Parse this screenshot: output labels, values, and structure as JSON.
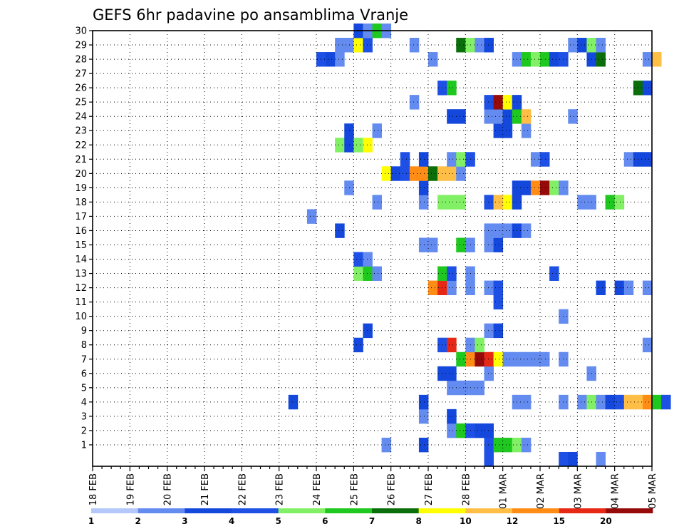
{
  "chart_data": {
    "type": "heatmap",
    "title": "GEFS 6hr padavine po ansamblima Vranje",
    "y_ticks": [
      "1",
      "2",
      "3",
      "4",
      "5",
      "6",
      "7",
      "8",
      "9",
      "10",
      "11",
      "12",
      "13",
      "14",
      "15",
      "16",
      "17",
      "18",
      "19",
      "20",
      "21",
      "22",
      "23",
      "24",
      "25",
      "26",
      "27",
      "28",
      "29",
      "30"
    ],
    "x_ticks": [
      "18 FEB",
      "19 FEB",
      "20 FEB",
      "21 FEB",
      "22 FEB",
      "23 FEB",
      "24 FEB",
      "25 FEB",
      "26 FEB",
      "27 FEB",
      "28 FEB",
      "01 MAR",
      "02 MAR",
      "03 MAR",
      "04 MAR",
      "05 MAR"
    ],
    "x_range_steps_6h": [
      0,
      60
    ],
    "y_range_members": [
      0,
      30
    ],
    "grid": "dotted",
    "colorbar": {
      "labels": [
        "1",
        "2",
        "3",
        "4",
        "5",
        "6",
        "7",
        "8",
        "10",
        "12",
        "15",
        "20"
      ],
      "colors": [
        "#b4c8fa",
        "#648cf0",
        "#1448dc",
        "#1e50e6",
        "#82f064",
        "#1ec81e",
        "#0a6e0a",
        "#ffff00",
        "#ffbe46",
        "#ff8c14",
        "#e62814",
        "#960a0a",
        "#640000"
      ]
    },
    "cells": [
      [
        0,
        42,
        3
      ],
      [
        0,
        50,
        3
      ],
      [
        0,
        51,
        2
      ],
      [
        0,
        54,
        1
      ],
      [
        1,
        31,
        1
      ],
      [
        1,
        35,
        2
      ],
      [
        1,
        42,
        3
      ],
      [
        1,
        43,
        5
      ],
      [
        1,
        44,
        5
      ],
      [
        1,
        45,
        4
      ],
      [
        1,
        46,
        1
      ],
      [
        2,
        38,
        1
      ],
      [
        2,
        39,
        5
      ],
      [
        2,
        40,
        3
      ],
      [
        2,
        41,
        2
      ],
      [
        2,
        42,
        2
      ],
      [
        3,
        35,
        1
      ],
      [
        3,
        38,
        2
      ],
      [
        4,
        21,
        2
      ],
      [
        4,
        35,
        2
      ],
      [
        4,
        45,
        1
      ],
      [
        4,
        46,
        1
      ],
      [
        4,
        50,
        1
      ],
      [
        4,
        52,
        1
      ],
      [
        4,
        53,
        4
      ],
      [
        4,
        54,
        1
      ],
      [
        4,
        55,
        2
      ],
      [
        4,
        56,
        3
      ],
      [
        4,
        57,
        8
      ],
      [
        4,
        58,
        8
      ],
      [
        4,
        59,
        9
      ],
      [
        4,
        60,
        5
      ],
      [
        4,
        61,
        3
      ],
      [
        5,
        38,
        1
      ],
      [
        5,
        39,
        1
      ],
      [
        5,
        40,
        1
      ],
      [
        5,
        41,
        1
      ],
      [
        6,
        37,
        2
      ],
      [
        6,
        38,
        2
      ],
      [
        6,
        42,
        1
      ],
      [
        6,
        53,
        1
      ],
      [
        7,
        39,
        5
      ],
      [
        7,
        40,
        9
      ],
      [
        7,
        41,
        11
      ],
      [
        7,
        42,
        10
      ],
      [
        7,
        43,
        7
      ],
      [
        7,
        44,
        1
      ],
      [
        7,
        45,
        1
      ],
      [
        7,
        46,
        1
      ],
      [
        7,
        47,
        1
      ],
      [
        7,
        48,
        1
      ],
      [
        7,
        50,
        1
      ],
      [
        8,
        28,
        2
      ],
      [
        8,
        37,
        3
      ],
      [
        8,
        38,
        10
      ],
      [
        8,
        40,
        1
      ],
      [
        8,
        41,
        4
      ],
      [
        8,
        59,
        1
      ],
      [
        9,
        29,
        2
      ],
      [
        9,
        42,
        1
      ],
      [
        9,
        43,
        2
      ],
      [
        10,
        50,
        1
      ],
      [
        11,
        43,
        3
      ],
      [
        12,
        36,
        9
      ],
      [
        12,
        37,
        10
      ],
      [
        12,
        38,
        1
      ],
      [
        12,
        40,
        1
      ],
      [
        12,
        42,
        1
      ],
      [
        12,
        43,
        3
      ],
      [
        12,
        54,
        2
      ],
      [
        12,
        56,
        2
      ],
      [
        12,
        57,
        1
      ],
      [
        12,
        59,
        1
      ],
      [
        13,
        28,
        4
      ],
      [
        13,
        29,
        5
      ],
      [
        13,
        30,
        1
      ],
      [
        13,
        37,
        5
      ],
      [
        13,
        38,
        3
      ],
      [
        13,
        40,
        1
      ],
      [
        13,
        49,
        3
      ],
      [
        14,
        28,
        3
      ],
      [
        14,
        29,
        1
      ],
      [
        15,
        35,
        1
      ],
      [
        15,
        36,
        1
      ],
      [
        15,
        39,
        5
      ],
      [
        15,
        40,
        1
      ],
      [
        15,
        42,
        1
      ],
      [
        15,
        43,
        2
      ],
      [
        16,
        26,
        2
      ],
      [
        16,
        42,
        1
      ],
      [
        16,
        43,
        1
      ],
      [
        16,
        44,
        1
      ],
      [
        16,
        45,
        2
      ],
      [
        16,
        46,
        1
      ],
      [
        17,
        23,
        1
      ],
      [
        18,
        30,
        1
      ],
      [
        18,
        35,
        1
      ],
      [
        18,
        37,
        4
      ],
      [
        18,
        38,
        4
      ],
      [
        18,
        39,
        4
      ],
      [
        18,
        42,
        3
      ],
      [
        18,
        43,
        8
      ],
      [
        18,
        44,
        7
      ],
      [
        18,
        45,
        2
      ],
      [
        18,
        52,
        1
      ],
      [
        18,
        53,
        1
      ],
      [
        18,
        55,
        5
      ],
      [
        18,
        56,
        4
      ],
      [
        19,
        27,
        1
      ],
      [
        19,
        35,
        2
      ],
      [
        19,
        45,
        2
      ],
      [
        19,
        46,
        2
      ],
      [
        19,
        47,
        9
      ],
      [
        19,
        48,
        11
      ],
      [
        19,
        49,
        4
      ],
      [
        19,
        50,
        1
      ],
      [
        20,
        31,
        7
      ],
      [
        20,
        32,
        2
      ],
      [
        20,
        33,
        3
      ],
      [
        20,
        34,
        9
      ],
      [
        20,
        35,
        9
      ],
      [
        20,
        36,
        6
      ],
      [
        20,
        37,
        8
      ],
      [
        20,
        38,
        8
      ],
      [
        20,
        39,
        1
      ],
      [
        21,
        33,
        3
      ],
      [
        21,
        35,
        2
      ],
      [
        21,
        38,
        1
      ],
      [
        21,
        39,
        4
      ],
      [
        21,
        40,
        3
      ],
      [
        21,
        47,
        1
      ],
      [
        21,
        48,
        3
      ],
      [
        21,
        57,
        1
      ],
      [
        21,
        58,
        2
      ],
      [
        21,
        59,
        2
      ],
      [
        22,
        26,
        4
      ],
      [
        22,
        27,
        2
      ],
      [
        22,
        28,
        4
      ],
      [
        22,
        29,
        7
      ],
      [
        23,
        27,
        2
      ],
      [
        23,
        30,
        1
      ],
      [
        23,
        43,
        2
      ],
      [
        23,
        44,
        2
      ],
      [
        23,
        46,
        1
      ],
      [
        24,
        38,
        2
      ],
      [
        24,
        39,
        2
      ],
      [
        24,
        42,
        1
      ],
      [
        24,
        43,
        1
      ],
      [
        24,
        44,
        2
      ],
      [
        24,
        45,
        5
      ],
      [
        24,
        46,
        8
      ],
      [
        24,
        51,
        1
      ],
      [
        25,
        34,
        1
      ],
      [
        25,
        42,
        3
      ],
      [
        25,
        43,
        11
      ],
      [
        25,
        44,
        7
      ],
      [
        25,
        45,
        2
      ],
      [
        26,
        37,
        3
      ],
      [
        26,
        38,
        5
      ],
      [
        26,
        58,
        6
      ],
      [
        26,
        59,
        2
      ],
      [
        28,
        24,
        3
      ],
      [
        28,
        25,
        2
      ],
      [
        28,
        26,
        1
      ],
      [
        28,
        36,
        1
      ],
      [
        28,
        45,
        1
      ],
      [
        28,
        46,
        5
      ],
      [
        28,
        47,
        4
      ],
      [
        28,
        48,
        5
      ],
      [
        28,
        49,
        2
      ],
      [
        28,
        50,
        3
      ],
      [
        28,
        53,
        2
      ],
      [
        28,
        54,
        6
      ],
      [
        28,
        59,
        1
      ],
      [
        28,
        60,
        8
      ],
      [
        29,
        26,
        1
      ],
      [
        29,
        27,
        1
      ],
      [
        29,
        28,
        7
      ],
      [
        29,
        29,
        3
      ],
      [
        29,
        34,
        1
      ],
      [
        29,
        39,
        6
      ],
      [
        29,
        40,
        4
      ],
      [
        29,
        41,
        1
      ],
      [
        29,
        42,
        2
      ],
      [
        29,
        51,
        1
      ],
      [
        29,
        52,
        2
      ],
      [
        29,
        53,
        4
      ],
      [
        29,
        54,
        1
      ],
      [
        30,
        28,
        2
      ],
      [
        30,
        29,
        1
      ],
      [
        30,
        30,
        5
      ],
      [
        30,
        31,
        1
      ]
    ]
  }
}
